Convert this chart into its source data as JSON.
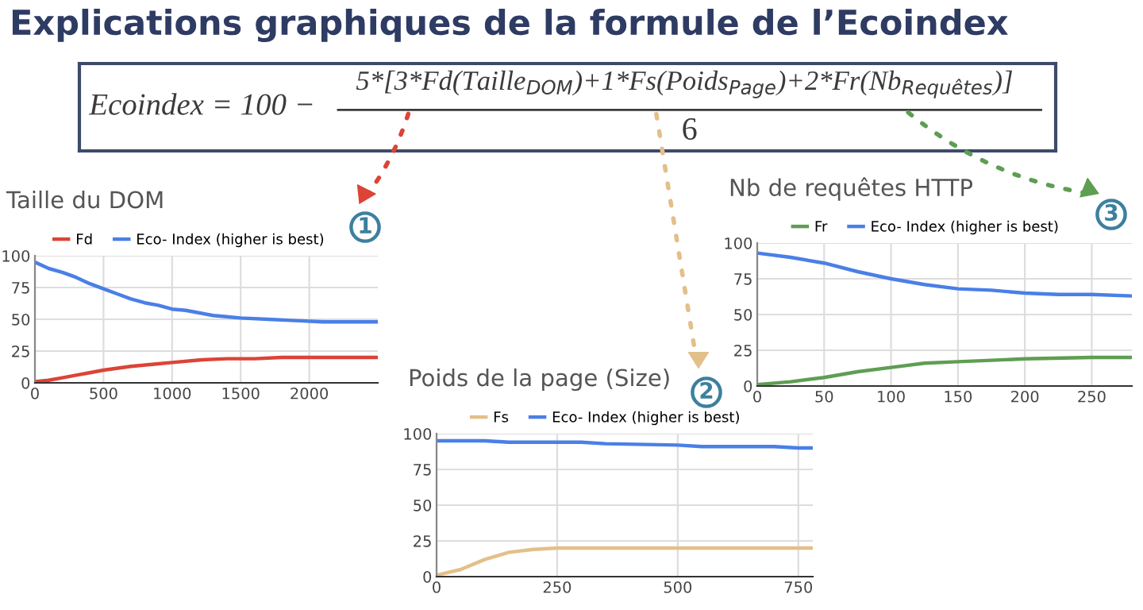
{
  "chart_data": [
    {
      "type": "other",
      "title": "Explications graphiques de la formule de l’Ecoindex",
      "annotations": [
        "Ecoindex = 100 −",
        "5*[3*Fd(Taille$_{DOM}$)+1*Fs(Poids$_{Page}$)+2*Fr(Nb$_{Requêtes}$)]",
        "6"
      ]
    },
    {
      "type": "line",
      "title": "Taille du DOM",
      "legend": "top",
      "grid": true,
      "xlim": [
        0,
        2500
      ],
      "xticks": [
        0,
        500,
        1000,
        1500,
        2000
      ],
      "ylim": [
        0,
        100
      ],
      "yticks": [
        0,
        25,
        50,
        75,
        100
      ],
      "annotations": [
        "1"
      ],
      "series": [
        {
          "name": "Fd",
          "color": "#db4437",
          "x": [
            0,
            100,
            200,
            300,
            400,
            500,
            700,
            900,
            1000,
            1200,
            1400,
            1600,
            1800,
            2100,
            2500
          ],
          "values": [
            1,
            2,
            4,
            6,
            8,
            10,
            13,
            15,
            16,
            18,
            19,
            19,
            20,
            20,
            20
          ]
        },
        {
          "name": "Eco- Index (higher is best)",
          "color": "#4a7fe6",
          "x": [
            0,
            100,
            200,
            300,
            400,
            500,
            600,
            700,
            800,
            900,
            1000,
            1100,
            1200,
            1300,
            1400,
            1500,
            1700,
            1900,
            2100,
            2300,
            2500
          ],
          "values": [
            95,
            90,
            87,
            83,
            78,
            74,
            70,
            66,
            63,
            61,
            58,
            57,
            55,
            53,
            52,
            51,
            50,
            49,
            48,
            48,
            48
          ]
        }
      ]
    },
    {
      "type": "line",
      "title": "Poids de la page (Size)",
      "legend": "top",
      "grid": true,
      "xlim": [
        0,
        780
      ],
      "xticks": [
        0,
        250,
        500,
        750
      ],
      "ylim": [
        0,
        100
      ],
      "yticks": [
        0,
        25,
        50,
        75,
        100
      ],
      "annotations": [
        "2"
      ],
      "series": [
        {
          "name": "Fs",
          "color": "#e3bf8a",
          "x": [
            0,
            50,
            100,
            150,
            200,
            250,
            780
          ],
          "values": [
            1,
            5,
            12,
            17,
            19,
            20,
            20
          ]
        },
        {
          "name": "Eco- Index (higher is best)",
          "color": "#4a7fe6",
          "x": [
            0,
            100,
            150,
            300,
            350,
            500,
            550,
            700,
            750,
            780
          ],
          "values": [
            95,
            95,
            94,
            94,
            93,
            92,
            91,
            91,
            90,
            90
          ]
        }
      ]
    },
    {
      "type": "line",
      "title": "Nb de requêtes HTTP",
      "legend": "top",
      "grid": true,
      "xlim": [
        0,
        280
      ],
      "xticks": [
        0,
        50,
        100,
        150,
        200,
        250
      ],
      "ylim": [
        0,
        100
      ],
      "yticks": [
        0,
        25,
        50,
        75,
        100
      ],
      "annotations": [
        "3"
      ],
      "series": [
        {
          "name": "Fr",
          "color": "#5e9e52",
          "x": [
            0,
            25,
            50,
            75,
            100,
            125,
            150,
            175,
            200,
            250,
            280
          ],
          "values": [
            1,
            3,
            6,
            10,
            13,
            16,
            17,
            18,
            19,
            20,
            20
          ]
        },
        {
          "name": "Eco- Index (higher is best)",
          "color": "#4a7fe6",
          "x": [
            0,
            25,
            50,
            75,
            100,
            125,
            150,
            175,
            200,
            225,
            250,
            280
          ],
          "values": [
            93,
            90,
            86,
            80,
            75,
            71,
            68,
            67,
            65,
            64,
            64,
            63
          ]
        }
      ]
    }
  ]
}
